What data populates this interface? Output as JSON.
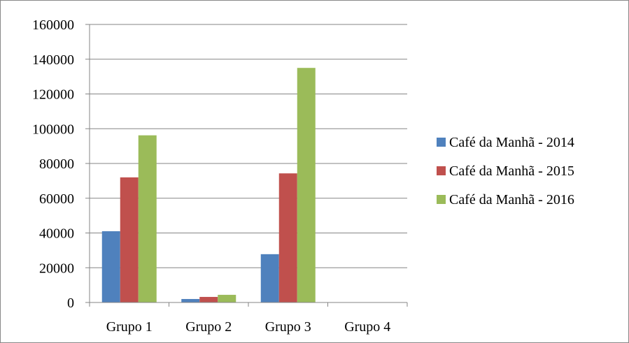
{
  "chart_data": {
    "type": "bar",
    "categories": [
      "Grupo 1",
      "Grupo 2",
      "Grupo 3",
      "Grupo 4"
    ],
    "series": [
      {
        "name": "Café da Manhã - 2014",
        "values": [
          41000,
          2000,
          27800,
          0
        ],
        "color": "#4F81BD"
      },
      {
        "name": "Café da Manhã - 2015",
        "values": [
          72000,
          3200,
          74300,
          0
        ],
        "color": "#C0504D"
      },
      {
        "name": "Café da Manhã - 2016",
        "values": [
          96200,
          4400,
          135000,
          0
        ],
        "color": "#9BBB59"
      }
    ],
    "ylim": [
      0,
      160000
    ],
    "yticks": [
      0,
      20000,
      40000,
      60000,
      80000,
      100000,
      120000,
      140000,
      160000
    ],
    "grid": true,
    "legend_position": "right"
  }
}
